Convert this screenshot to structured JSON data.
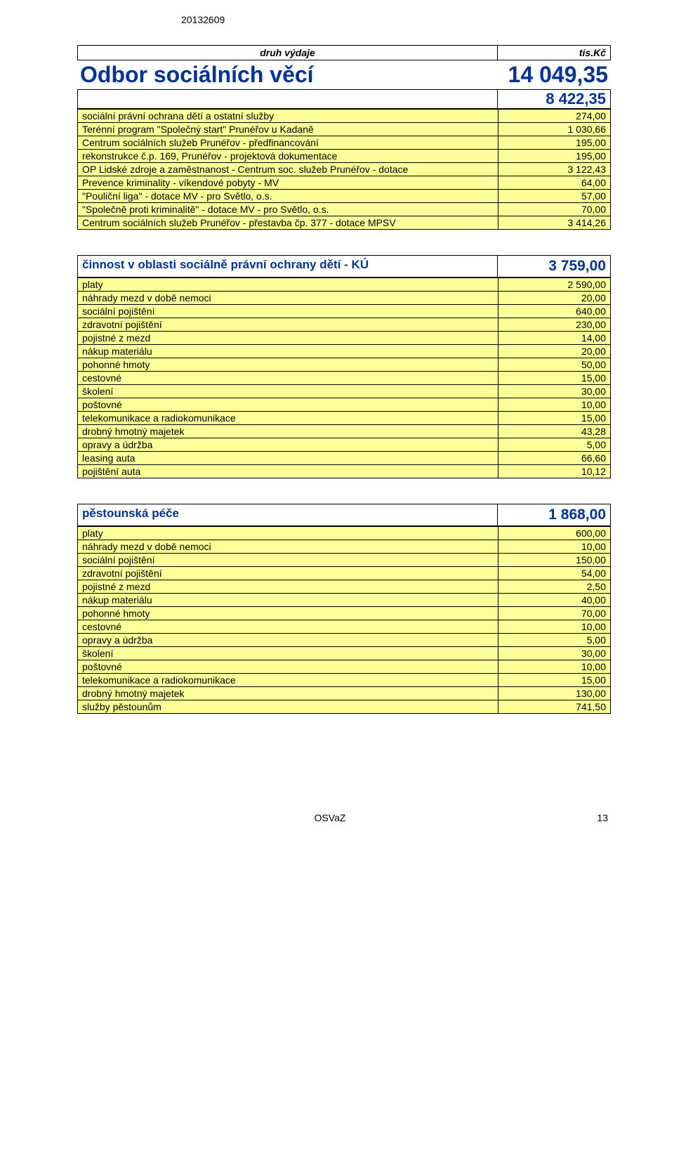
{
  "doc_id": "20132609",
  "header": {
    "col1": "druh výdaje",
    "col2": "tis.Kč"
  },
  "title": {
    "name": "Odbor sociálních věcí",
    "amount": "14 049,35"
  },
  "subtotal": "8 422,35",
  "block1": [
    {
      "label": "sociální právní ochrana dětí a ostatní služby",
      "value": "274,00"
    },
    {
      "label": "Terénní program \"Společný start\" Prunéřov u Kadaně",
      "value": "1 030,66"
    },
    {
      "label": "Centrum sociálních služeb Prunéřov - předfinancování",
      "value": "195,00"
    },
    {
      "label": "rekonstrukce č.p. 169, Prunéřov - projektová dokumentace",
      "value": "195,00"
    },
    {
      "label": "OP Lidské zdroje a zaměstnanost - Centrum soc. služeb Prunéřov - dotace",
      "value": "3 122,43"
    },
    {
      "label": "Prevence kriminality - víkendové pobyty - MV",
      "value": "64,00"
    },
    {
      "label": "\"Pouliční liga\" - dotace MV - pro Světlo, o.s.",
      "value": "57,00"
    },
    {
      "label": "\"Společně proti kriminalitě\" - dotace MV - pro Světlo, o.s.",
      "value": "70,00"
    },
    {
      "label": "Centrum sociálních služeb Prunéřov - přestavba čp. 377 - dotace MPSV",
      "value": "3 414,26"
    }
  ],
  "section2": {
    "title": "činnost v oblasti sociálně právní ochrany dětí - KÚ",
    "amount": "3 759,00",
    "rows": [
      {
        "label": "platy",
        "value": "2 590,00"
      },
      {
        "label": "náhrady mezd v době nemoci",
        "value": "20,00"
      },
      {
        "label": "sociální pojištění",
        "value": "640,00"
      },
      {
        "label": "zdravotní pojištění",
        "value": "230,00"
      },
      {
        "label": "pojistné z mezd",
        "value": "14,00"
      },
      {
        "label": "nákup materiálu",
        "value": "20,00"
      },
      {
        "label": "pohonné hmoty",
        "value": "50,00"
      },
      {
        "label": "cestovné",
        "value": "15,00"
      },
      {
        "label": "školení",
        "value": "30,00"
      },
      {
        "label": "poštovné",
        "value": "10,00"
      },
      {
        "label": "telekomunikace a radiokomunikace",
        "value": "15,00"
      },
      {
        "label": "drobný hmotný majetek",
        "value": "43,28"
      },
      {
        "label": "opravy a údržba",
        "value": "5,00"
      },
      {
        "label": "leasing auta",
        "value": "66,60"
      },
      {
        "label": "pojištění auta",
        "value": "10,12"
      }
    ]
  },
  "section3": {
    "title": "pěstounská péče",
    "amount": "1 868,00",
    "rows": [
      {
        "label": "platy",
        "value": "600,00"
      },
      {
        "label": "náhrady mezd v době nemoci",
        "value": "10,00"
      },
      {
        "label": "sociální pojištění",
        "value": "150,00"
      },
      {
        "label": "zdravotní pojištění",
        "value": "54,00"
      },
      {
        "label": "pojistné z mezd",
        "value": "2,50"
      },
      {
        "label": "nákup materiálu",
        "value": "40,00"
      },
      {
        "label": "pohonné hmoty",
        "value": "70,00"
      },
      {
        "label": "cestovné",
        "value": "10,00"
      },
      {
        "label": "opravy a údržba",
        "value": "5,00"
      },
      {
        "label": "školení",
        "value": "30,00"
      },
      {
        "label": "poštovné",
        "value": "10,00"
      },
      {
        "label": "telekomunikace a radiokomunikace",
        "value": "15,00"
      },
      {
        "label": "drobný hmotný majetek",
        "value": "130,00"
      },
      {
        "label": "služby pěstounům",
        "value": "741,50"
      }
    ]
  },
  "footer": {
    "center": "OSVaZ",
    "page": "13"
  },
  "colors": {
    "row_bg": "#ffff99",
    "accent": "#003399",
    "border": "#000000",
    "page_bg": "#ffffff"
  }
}
